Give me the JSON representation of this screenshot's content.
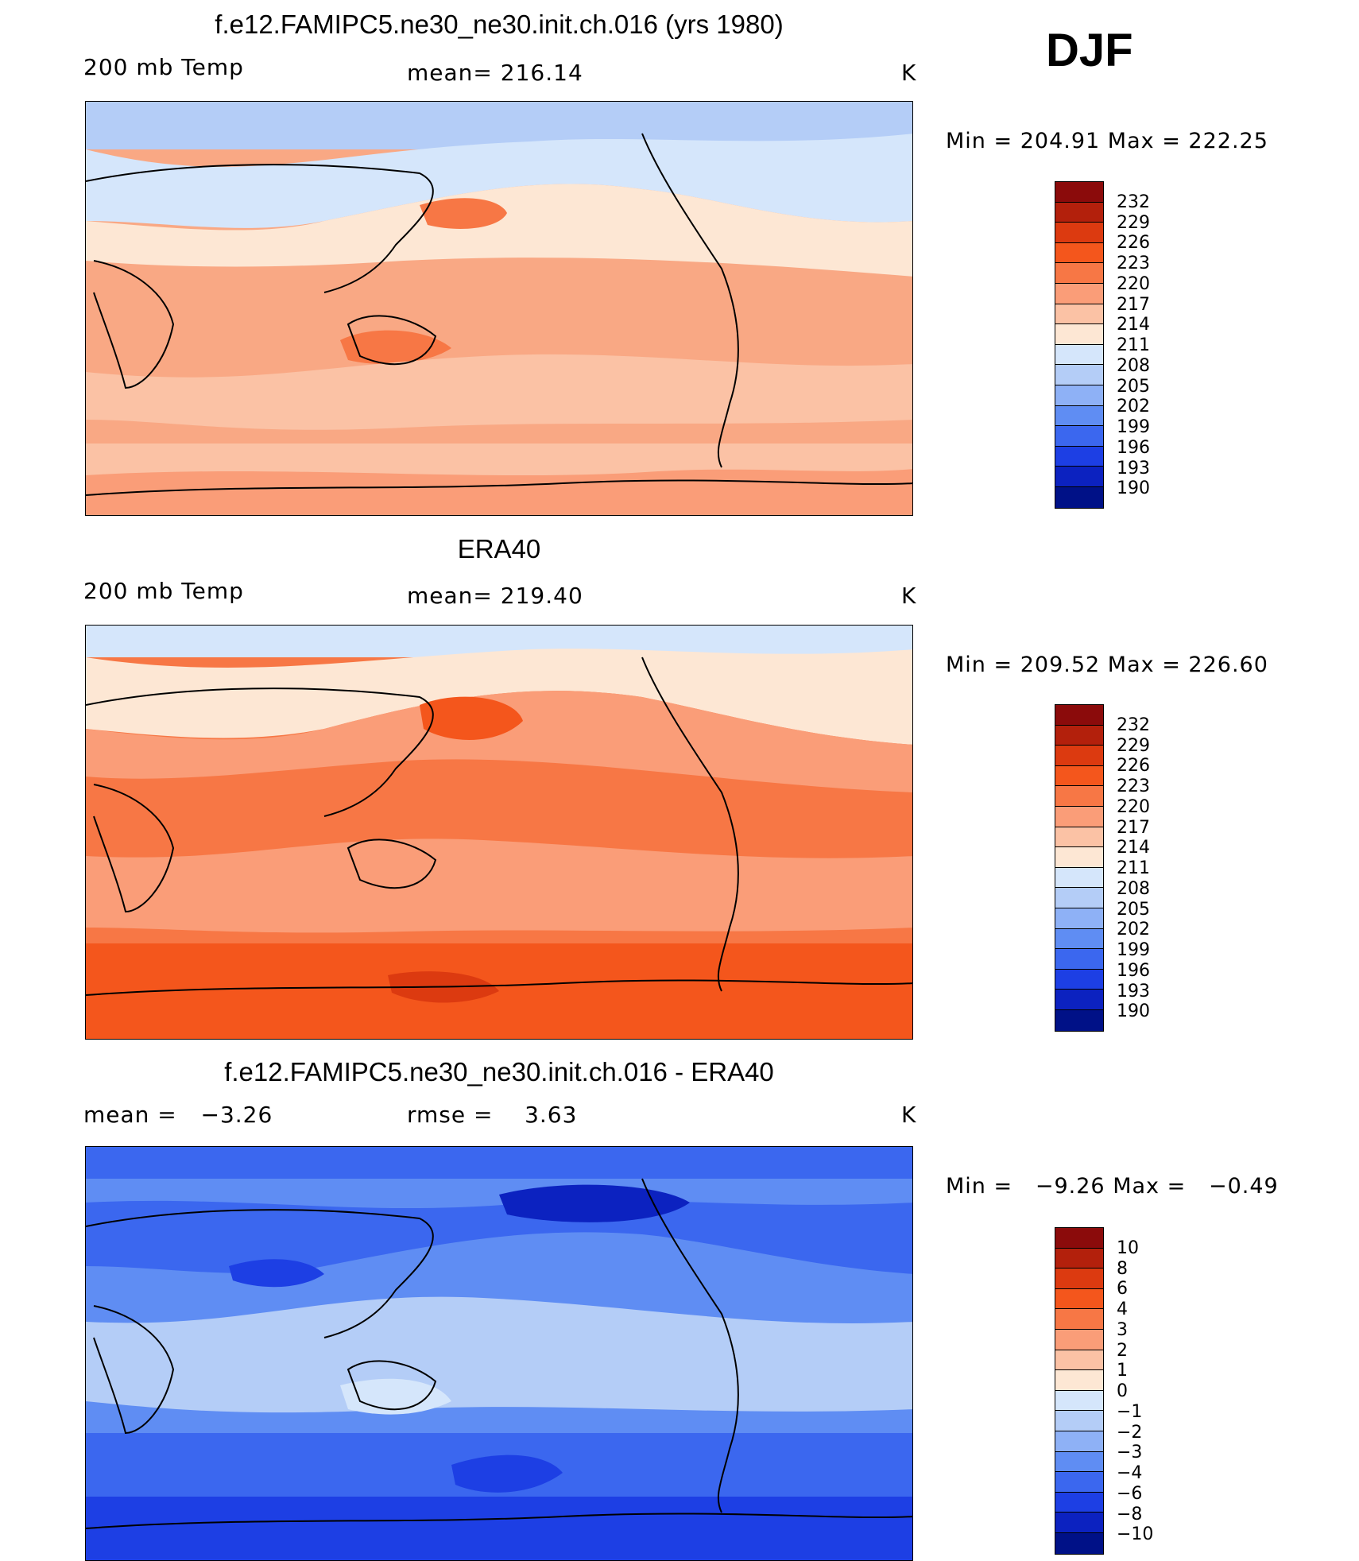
{
  "season": "DJF",
  "panels": [
    {
      "title": "f.e12.FAMIPC5.ne30_ne30.init.ch.016 (yrs 1980)",
      "left_label": "200 mb Temp",
      "stat_label": "mean=",
      "stat_value": "216.14",
      "unit": "K",
      "minmax": {
        "min_label": "Min",
        "min": "204.91",
        "max_label": "Max",
        "max": "222.25"
      },
      "colorbar": {
        "labels": [
          "232",
          "229",
          "226",
          "223",
          "220",
          "217",
          "214",
          "211",
          "208",
          "205",
          "202",
          "199",
          "196",
          "193",
          "190"
        ],
        "colors": [
          "#8b0b0b",
          "#b3200c",
          "#dc3a10",
          "#f4561c",
          "#f77745",
          "#fa9d78",
          "#fbc2a5",
          "#fde7d4",
          "#d5e6fb",
          "#b4cdf7",
          "#8eb1f6",
          "#5f8df3",
          "#3b67ef",
          "#1d3fe4",
          "#0c22c0",
          "#001187"
        ]
      },
      "map_fill": "#f9a884"
    },
    {
      "title": "ERA40",
      "left_label": "200 mb Temp",
      "stat_label": "mean=",
      "stat_value": "219.40",
      "unit": "K",
      "minmax": {
        "min_label": "Min",
        "min": "209.52",
        "max_label": "Max",
        "max": "226.60"
      },
      "colorbar": {
        "labels": [
          "232",
          "229",
          "226",
          "223",
          "220",
          "217",
          "214",
          "211",
          "208",
          "205",
          "202",
          "199",
          "196",
          "193",
          "190"
        ],
        "colors": [
          "#8b0b0b",
          "#b3200c",
          "#dc3a10",
          "#f4561c",
          "#f77745",
          "#fa9d78",
          "#fbc2a5",
          "#fde7d4",
          "#d5e6fb",
          "#b4cdf7",
          "#8eb1f6",
          "#5f8df3",
          "#3b67ef",
          "#1d3fe4",
          "#0c22c0",
          "#001187"
        ]
      },
      "map_fill": "#f77a4b"
    },
    {
      "title": "f.e12.FAMIPC5.ne30_ne30.init.ch.016 - ERA40",
      "left_label": "mean =",
      "left_value": "−3.26",
      "stat_label": "rmse =",
      "stat_value": "3.63",
      "unit": "K",
      "minmax": {
        "min_label": "Min",
        "min": "−9.26",
        "max_label": "Max",
        "max": "−0.49"
      },
      "colorbar": {
        "labels": [
          "10",
          "8",
          "6",
          "4",
          "3",
          "2",
          "1",
          "0",
          "−1",
          "−2",
          "−3",
          "−4",
          "−6",
          "−8",
          "−10"
        ],
        "colors": [
          "#8b0b0b",
          "#b3200c",
          "#dc3a10",
          "#f4561c",
          "#f77745",
          "#fa9d78",
          "#fbc2a5",
          "#fde7d4",
          "#d5e6fb",
          "#b4cdf7",
          "#8eb1f6",
          "#5f8df3",
          "#3b67ef",
          "#1d3fe4",
          "#0c22c0",
          "#001187"
        ]
      },
      "map_fill": "#5f8df3"
    }
  ],
  "chart_data": [
    {
      "type": "heatmap",
      "title": "f.e12.FAMIPC5.ne30_ne30.init.ch.016 (yrs 1980)",
      "variable": "200 mb Temp",
      "units": "K",
      "mean": 216.14,
      "min": 204.91,
      "max": 222.25,
      "levels": [
        190,
        193,
        196,
        199,
        202,
        205,
        208,
        211,
        214,
        217,
        220,
        223,
        226,
        229,
        232
      ]
    },
    {
      "type": "heatmap",
      "title": "ERA40",
      "variable": "200 mb Temp",
      "units": "K",
      "mean": 219.4,
      "min": 209.52,
      "max": 226.6,
      "levels": [
        190,
        193,
        196,
        199,
        202,
        205,
        208,
        211,
        214,
        217,
        220,
        223,
        226,
        229,
        232
      ]
    },
    {
      "type": "heatmap",
      "title": "f.e12.FAMIPC5.ne30_ne30.init.ch.016 - ERA40",
      "units": "K",
      "mean": -3.26,
      "rmse": 3.63,
      "min": -9.26,
      "max": -0.49,
      "levels": [
        -10,
        -8,
        -6,
        -4,
        -3,
        -2,
        -1,
        0,
        1,
        2,
        3,
        4,
        6,
        8,
        10
      ]
    }
  ]
}
